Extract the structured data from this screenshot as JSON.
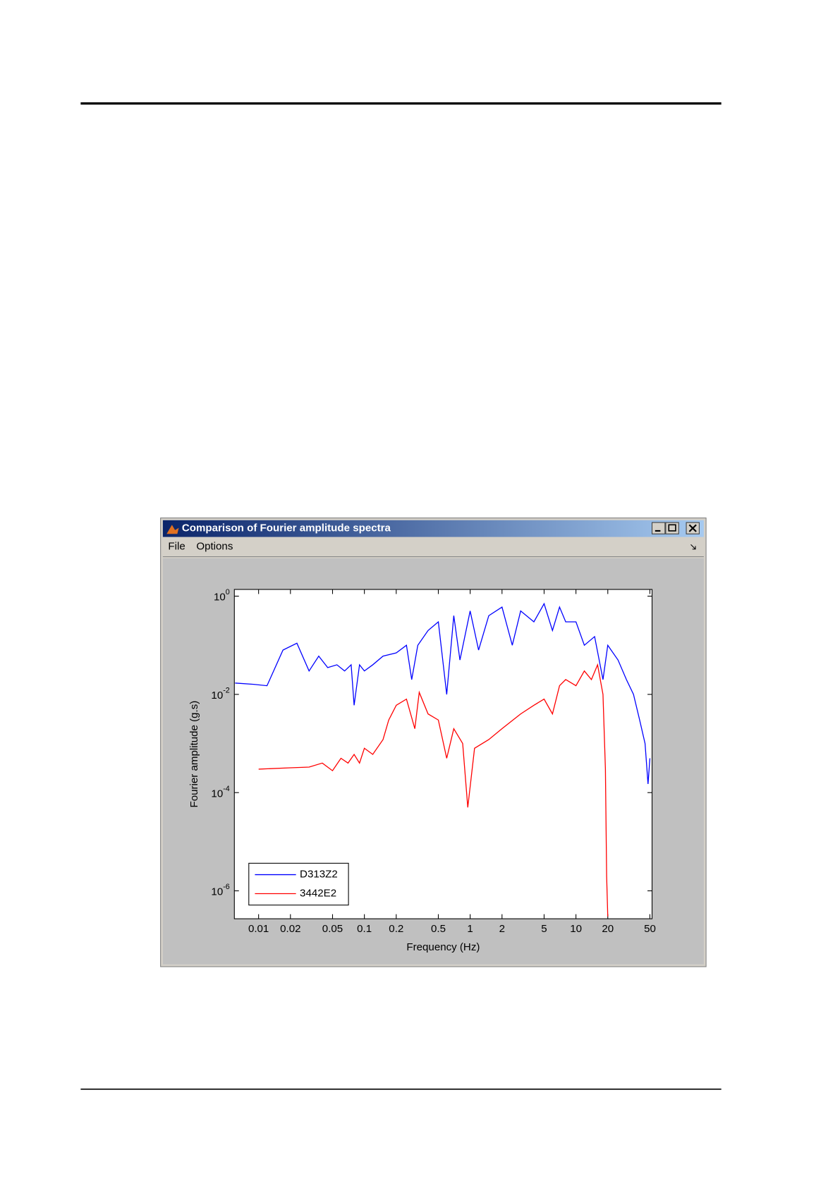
{
  "window": {
    "title": "Comparison of Fourier amplitude spectra",
    "menu": [
      "File",
      "Options"
    ]
  },
  "chart_data": {
    "type": "line",
    "xlabel": "Frequency (Hz)",
    "ylabel": "Fourier amplitude (g.s)",
    "xscale": "log",
    "yscale": "log",
    "legend": "lower left",
    "xlim": [
      0.0059,
      52.4
    ],
    "ylim": [
      2.7e-07,
      1.37
    ],
    "xticks": [
      0.01,
      0.02,
      0.05,
      0.1,
      0.2,
      0.5,
      1,
      2,
      5,
      10,
      20,
      50
    ],
    "yticks": [
      {
        "value": 1e-06,
        "label": "10^-6"
      },
      {
        "value": 0.0001,
        "label": "10^-4"
      },
      {
        "value": 0.01,
        "label": "10^-2"
      },
      {
        "value": 1,
        "label": "10^0"
      }
    ],
    "series": [
      {
        "name": "D313Z2",
        "color": "#0000ff",
        "x": [
          0.006,
          0.009,
          0.012,
          0.017,
          0.023,
          0.03,
          0.037,
          0.045,
          0.055,
          0.065,
          0.075,
          0.08,
          0.09,
          0.1,
          0.12,
          0.15,
          0.2,
          0.25,
          0.28,
          0.32,
          0.4,
          0.5,
          0.6,
          0.7,
          0.8,
          1,
          1.2,
          1.5,
          2,
          2.5,
          3,
          4,
          5,
          6,
          7,
          8,
          10,
          12,
          15,
          18,
          20,
          25,
          30,
          35,
          40,
          45,
          48,
          50
        ],
        "values": [
          0.017,
          0.016,
          0.015,
          0.08,
          0.11,
          0.03,
          0.06,
          0.035,
          0.04,
          0.03,
          0.04,
          0.006,
          0.04,
          0.03,
          0.04,
          0.06,
          0.07,
          0.1,
          0.02,
          0.1,
          0.2,
          0.3,
          0.01,
          0.4,
          0.05,
          0.5,
          0.08,
          0.4,
          0.6,
          0.1,
          0.5,
          0.3,
          0.7,
          0.2,
          0.6,
          0.3,
          0.3,
          0.1,
          0.15,
          0.02,
          0.1,
          0.05,
          0.02,
          0.01,
          0.003,
          0.001,
          0.00015,
          0.0005
        ]
      },
      {
        "name": "3442E2",
        "color": "#ff0000",
        "x": [
          0.01,
          0.02,
          0.03,
          0.04,
          0.05,
          0.06,
          0.07,
          0.08,
          0.09,
          0.1,
          0.12,
          0.15,
          0.17,
          0.2,
          0.25,
          0.3,
          0.33,
          0.4,
          0.5,
          0.6,
          0.7,
          0.85,
          0.95,
          1.1,
          1.5,
          2,
          3,
          4,
          5,
          6,
          7,
          8,
          10,
          12,
          14,
          16,
          18,
          19,
          19.5,
          20
        ],
        "values": [
          0.0003,
          0.00032,
          0.00033,
          0.0004,
          0.00028,
          0.0005,
          0.0004,
          0.0006,
          0.0004,
          0.0008,
          0.0006,
          0.0012,
          0.003,
          0.006,
          0.008,
          0.002,
          0.011,
          0.004,
          0.003,
          0.0005,
          0.002,
          0.001,
          5e-05,
          0.0008,
          0.0012,
          0.002,
          0.004,
          0.006,
          0.008,
          0.004,
          0.015,
          0.02,
          0.015,
          0.03,
          0.02,
          0.04,
          0.01,
          0.0003,
          2e-06,
          3e-07
        ]
      }
    ]
  }
}
